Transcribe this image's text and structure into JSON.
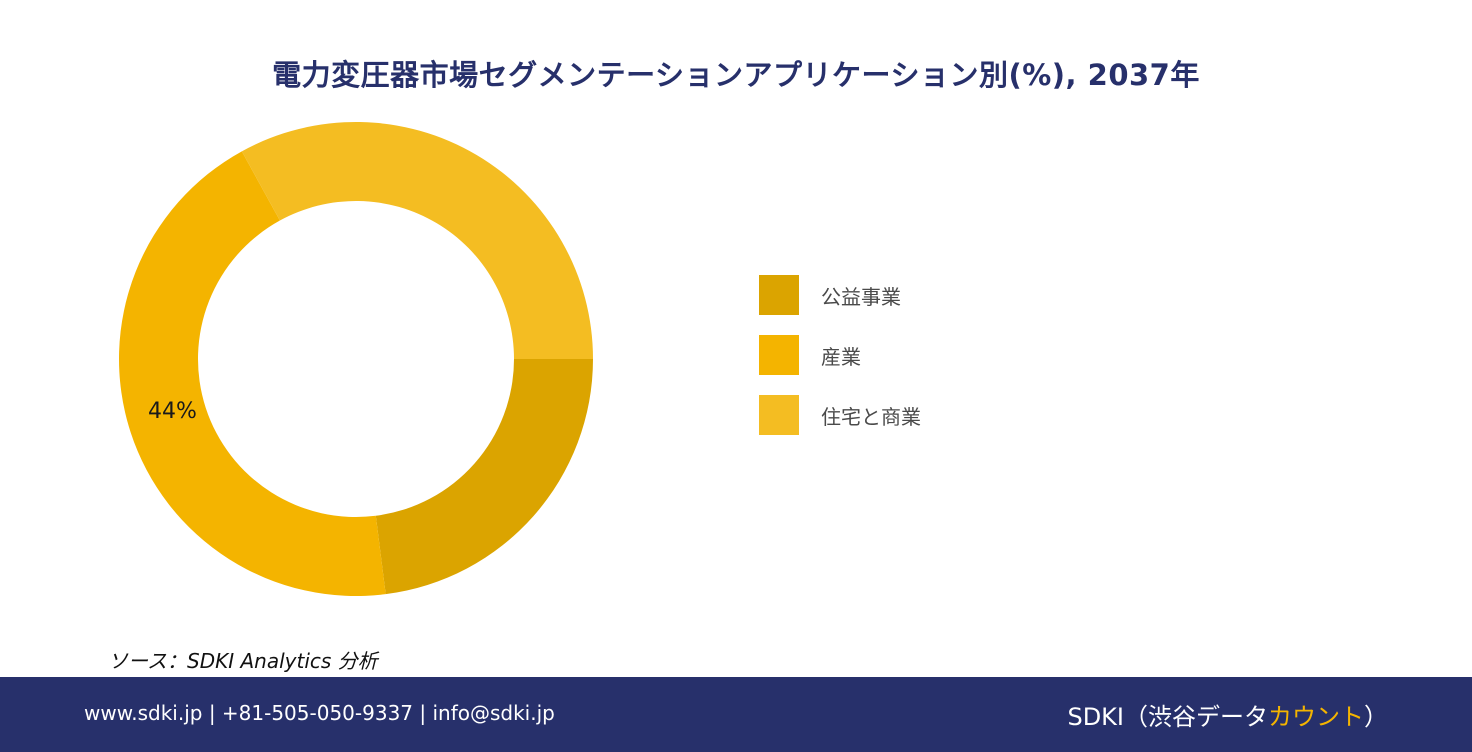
{
  "title": "電力変圧器市場セグメンテーションアプリケーション別(%), 2037年",
  "chart_data": {
    "type": "pie",
    "variant": "donut",
    "categories": [
      "公益事業",
      "産業",
      "住宅と商業"
    ],
    "values": [
      23,
      44,
      33
    ],
    "unit": "%",
    "colors": [
      "#dba400",
      "#f4b400",
      "#f4bd22"
    ],
    "data_labels": [
      {
        "category": "産業",
        "text": "44%"
      }
    ],
    "legend_position": "right"
  },
  "source": "ソース：SDKI Analytics 分析",
  "footer": {
    "contact": "www.sdki.jp | +81-505-050-9337 | info@sdki.jp",
    "brand_prefix": "SDKI（渋谷データ",
    "brand_accent": "カウント",
    "brand_suffix": "）"
  }
}
